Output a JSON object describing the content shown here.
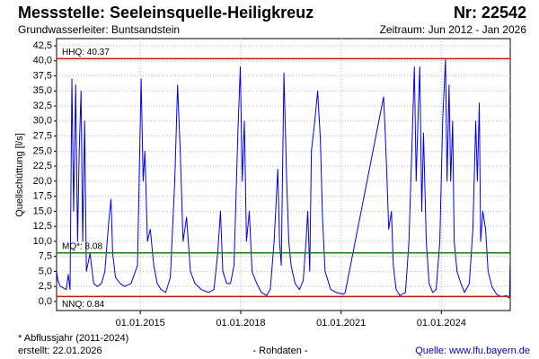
{
  "chart_data": {
    "type": "line",
    "title": "Messstelle: Seeleinsquelle-Heiligkreuz",
    "number": "Nr: 22542",
    "subtitle": "Grundwasserleiter: Buntsandstein",
    "period": "Zeitraum: Jun 2012 - Jan 2026",
    "y_label": "Quellschüttung [l/s]",
    "footnote": "* Abflussjahr (2011-2024)",
    "created": "erstellt:  22.01.2026",
    "center_note": "- Rohdaten -",
    "source": "Quelle: www.lfu.bayern.de",
    "grid": true,
    "xlim": [
      "01.07.2012",
      "22.01.2026"
    ],
    "xticks": [
      "01.01.2015",
      "01.01.2018",
      "01.01.2021",
      "01.01.2024"
    ],
    "ylim": [
      -1.5,
      43.7
    ],
    "yticks": [
      {
        "value": 0,
        "label": "0,0"
      },
      {
        "value": 2.5,
        "label": "2,5"
      },
      {
        "value": 5,
        "label": "5,0"
      },
      {
        "value": 7.5,
        "label": "7,5"
      },
      {
        "value": 10,
        "label": "10,0"
      },
      {
        "value": 12.5,
        "label": "12,5"
      },
      {
        "value": 15,
        "label": "15,0"
      },
      {
        "value": 17.5,
        "label": "17,5"
      },
      {
        "value": 20,
        "label": "20,0"
      },
      {
        "value": 22.5,
        "label": "22,5"
      },
      {
        "value": 25,
        "label": "25,0"
      },
      {
        "value": 27.5,
        "label": "27,5"
      },
      {
        "value": 30,
        "label": "30,0"
      },
      {
        "value": 32.5,
        "label": "32,5"
      },
      {
        "value": 35,
        "label": "35,0"
      },
      {
        "value": 37.5,
        "label": "37,5"
      },
      {
        "value": 40,
        "label": "40,0"
      },
      {
        "value": 42.5,
        "label": "42,5"
      }
    ],
    "reference_lines": [
      {
        "label": "HHQ: 40.37",
        "value": 40.37,
        "color": "#ee0000"
      },
      {
        "label": "MQ*: 8.08",
        "value": 8.08,
        "color": "#008800"
      },
      {
        "label": "NNQ: 0.84",
        "value": 0.84,
        "color": "#ee0000"
      }
    ],
    "series": [
      {
        "color": "#0000ee",
        "x": [
          "02.07.2012",
          "15.07.2012",
          "12.08.2012",
          "15.10.2012",
          "05.11.2012",
          "25.11.2012",
          "15.12.2012",
          "03.01.2013",
          "25.01.2013",
          "15.02.2013",
          "05.03.2013",
          "25.03.2013",
          "12.04.2013",
          "03.05.2013",
          "22.05.2013",
          "01.07.2013",
          "10.08.2013",
          "20.09.2013",
          "03.11.2013",
          "10.12.2013",
          "20.01.2014",
          "15.02.2014",
          "05.03.2014",
          "05.04.2014",
          "25.05.2014",
          "12.07.2014",
          "22.09.2014",
          "01.12.2014",
          "10.01.2015",
          "01.02.2015",
          "20.02.2015",
          "20.03.2015",
          "20.04.2015",
          "28.05.2015",
          "05.07.2015",
          "15.08.2015",
          "05.10.2015",
          "25.11.2015",
          "12.01.2016",
          "12.02.2016",
          "12.03.2016",
          "12.04.2016",
          "20.05.2016",
          "01.07.2016",
          "20.08.2016",
          "28.10.2016",
          "15.01.2017",
          "15.03.2017",
          "25.04.2017",
          "25.05.2017",
          "20.06.2017",
          "01.08.2017",
          "12.09.2017",
          "20.10.2017",
          "01.12.2017",
          "28.12.2017",
          "18.01.2018",
          "10.02.2018",
          "05.03.2018",
          "05.04.2018",
          "05.05.2018",
          "25.06.2018",
          "15.08.2018",
          "12.10.2018",
          "20.11.2018",
          "01.01.2019",
          "10.02.2019",
          "01.03.2019",
          "20.03.2019",
          "18.04.2019",
          "18.05.2019",
          "10.06.2019",
          "05.07.2019",
          "18.08.2019",
          "05.10.2019",
          "15.11.2019",
          "15.12.2019",
          "03.01.2020",
          "25.01.2020",
          "12.02.2020",
          "20.03.2020",
          "20.04.2020",
          "20.05.2020",
          "12.06.2020",
          "10.07.2020",
          "10.09.2020",
          "10.11.2020",
          "28.01.2021",
          "15.02.2021",
          "10.04.2022",
          "28.04.2022",
          "18.05.2022",
          "05.06.2022",
          "05.07.2022",
          "25.07.2022",
          "25.08.2022",
          "05.10.2022",
          "05.12.2022",
          "12.01.2023",
          "12.02.2023",
          "12.03.2023",
          "01.04.2023",
          "20.04.2023",
          "10.05.2023",
          "01.06.2023",
          "20.06.2023",
          "20.07.2023",
          "20.08.2023",
          "28.09.2023",
          "05.11.2023",
          "15.12.2023",
          "15.01.2024",
          "15.02.2024",
          "03.03.2024",
          "25.03.2024",
          "12.04.2024",
          "03.05.2024",
          "20.05.2024",
          "20.06.2024",
          "01.08.2024",
          "10.09.2024",
          "01.11.2024",
          "10.12.2024",
          "10.01.2025",
          "28.01.2025",
          "18.02.2025",
          "05.03.2025",
          "28.03.2025",
          "28.04.2025",
          "25.05.2025",
          "05.07.2025",
          "25.08.2025",
          "20.10.2025",
          "10.12.2025",
          "05.01.2026",
          "15.01.2026",
          "20.01.2026"
        ],
        "values": [
          5,
          3.5,
          2.5,
          2,
          4.5,
          2,
          37,
          15,
          36,
          10,
          25,
          35,
          10,
          30,
          5,
          8,
          3,
          2.5,
          3,
          5,
          13,
          17,
          8,
          4,
          3,
          2.5,
          3,
          6,
          37,
          20,
          25,
          10,
          12,
          6,
          3,
          2,
          1.5,
          4,
          20,
          36,
          25,
          10,
          14,
          5,
          3,
          2,
          1.5,
          2,
          8,
          15,
          5,
          3,
          3,
          6,
          28,
          39,
          20,
          30,
          10,
          15,
          5,
          3,
          1.5,
          1,
          2,
          10,
          22,
          10,
          6,
          38,
          20,
          10,
          6,
          3,
          2,
          3.5,
          10,
          15,
          5,
          25,
          30,
          35,
          27,
          14,
          5,
          2,
          1.5,
          1.2,
          1.5,
          34,
          28,
          20,
          12,
          15,
          6,
          2,
          1,
          1.5,
          10,
          25,
          39,
          20,
          30,
          39,
          15,
          28,
          10,
          3,
          1.5,
          2,
          10,
          30,
          40.3,
          20,
          36,
          20,
          30,
          10,
          5,
          3,
          1.5,
          3,
          12,
          30,
          20,
          33,
          10,
          15,
          12,
          5,
          2.5,
          1.2,
          0.8,
          1,
          0.6,
          1,
          6
        ]
      }
    ]
  }
}
